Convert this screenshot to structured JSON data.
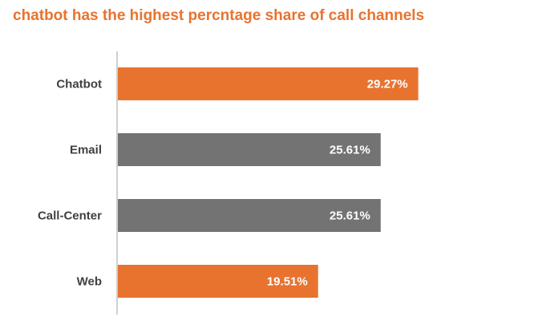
{
  "chart_data": {
    "type": "bar",
    "orientation": "horizontal",
    "title": "chatbot has the highest percntage share of call channels",
    "categories": [
      "Chatbot",
      "Email",
      "Call-Center",
      "Web"
    ],
    "values": [
      29.27,
      25.61,
      25.61,
      19.51
    ],
    "value_labels": [
      "29.27%",
      "25.61%",
      "25.61%",
      "19.51%"
    ],
    "bar_colors": [
      "#e8732f",
      "#737373",
      "#737373",
      "#e8732f"
    ],
    "xlabel": "",
    "ylabel": "",
    "xlim": [
      0,
      40
    ],
    "grid": false,
    "legend": "none"
  },
  "colors": {
    "title": "#e8732f",
    "accent": "#e8732f",
    "neutral": "#737373",
    "axis": "#bfbfbf",
    "category_text": "#404040",
    "value_text": "#ffffff"
  }
}
